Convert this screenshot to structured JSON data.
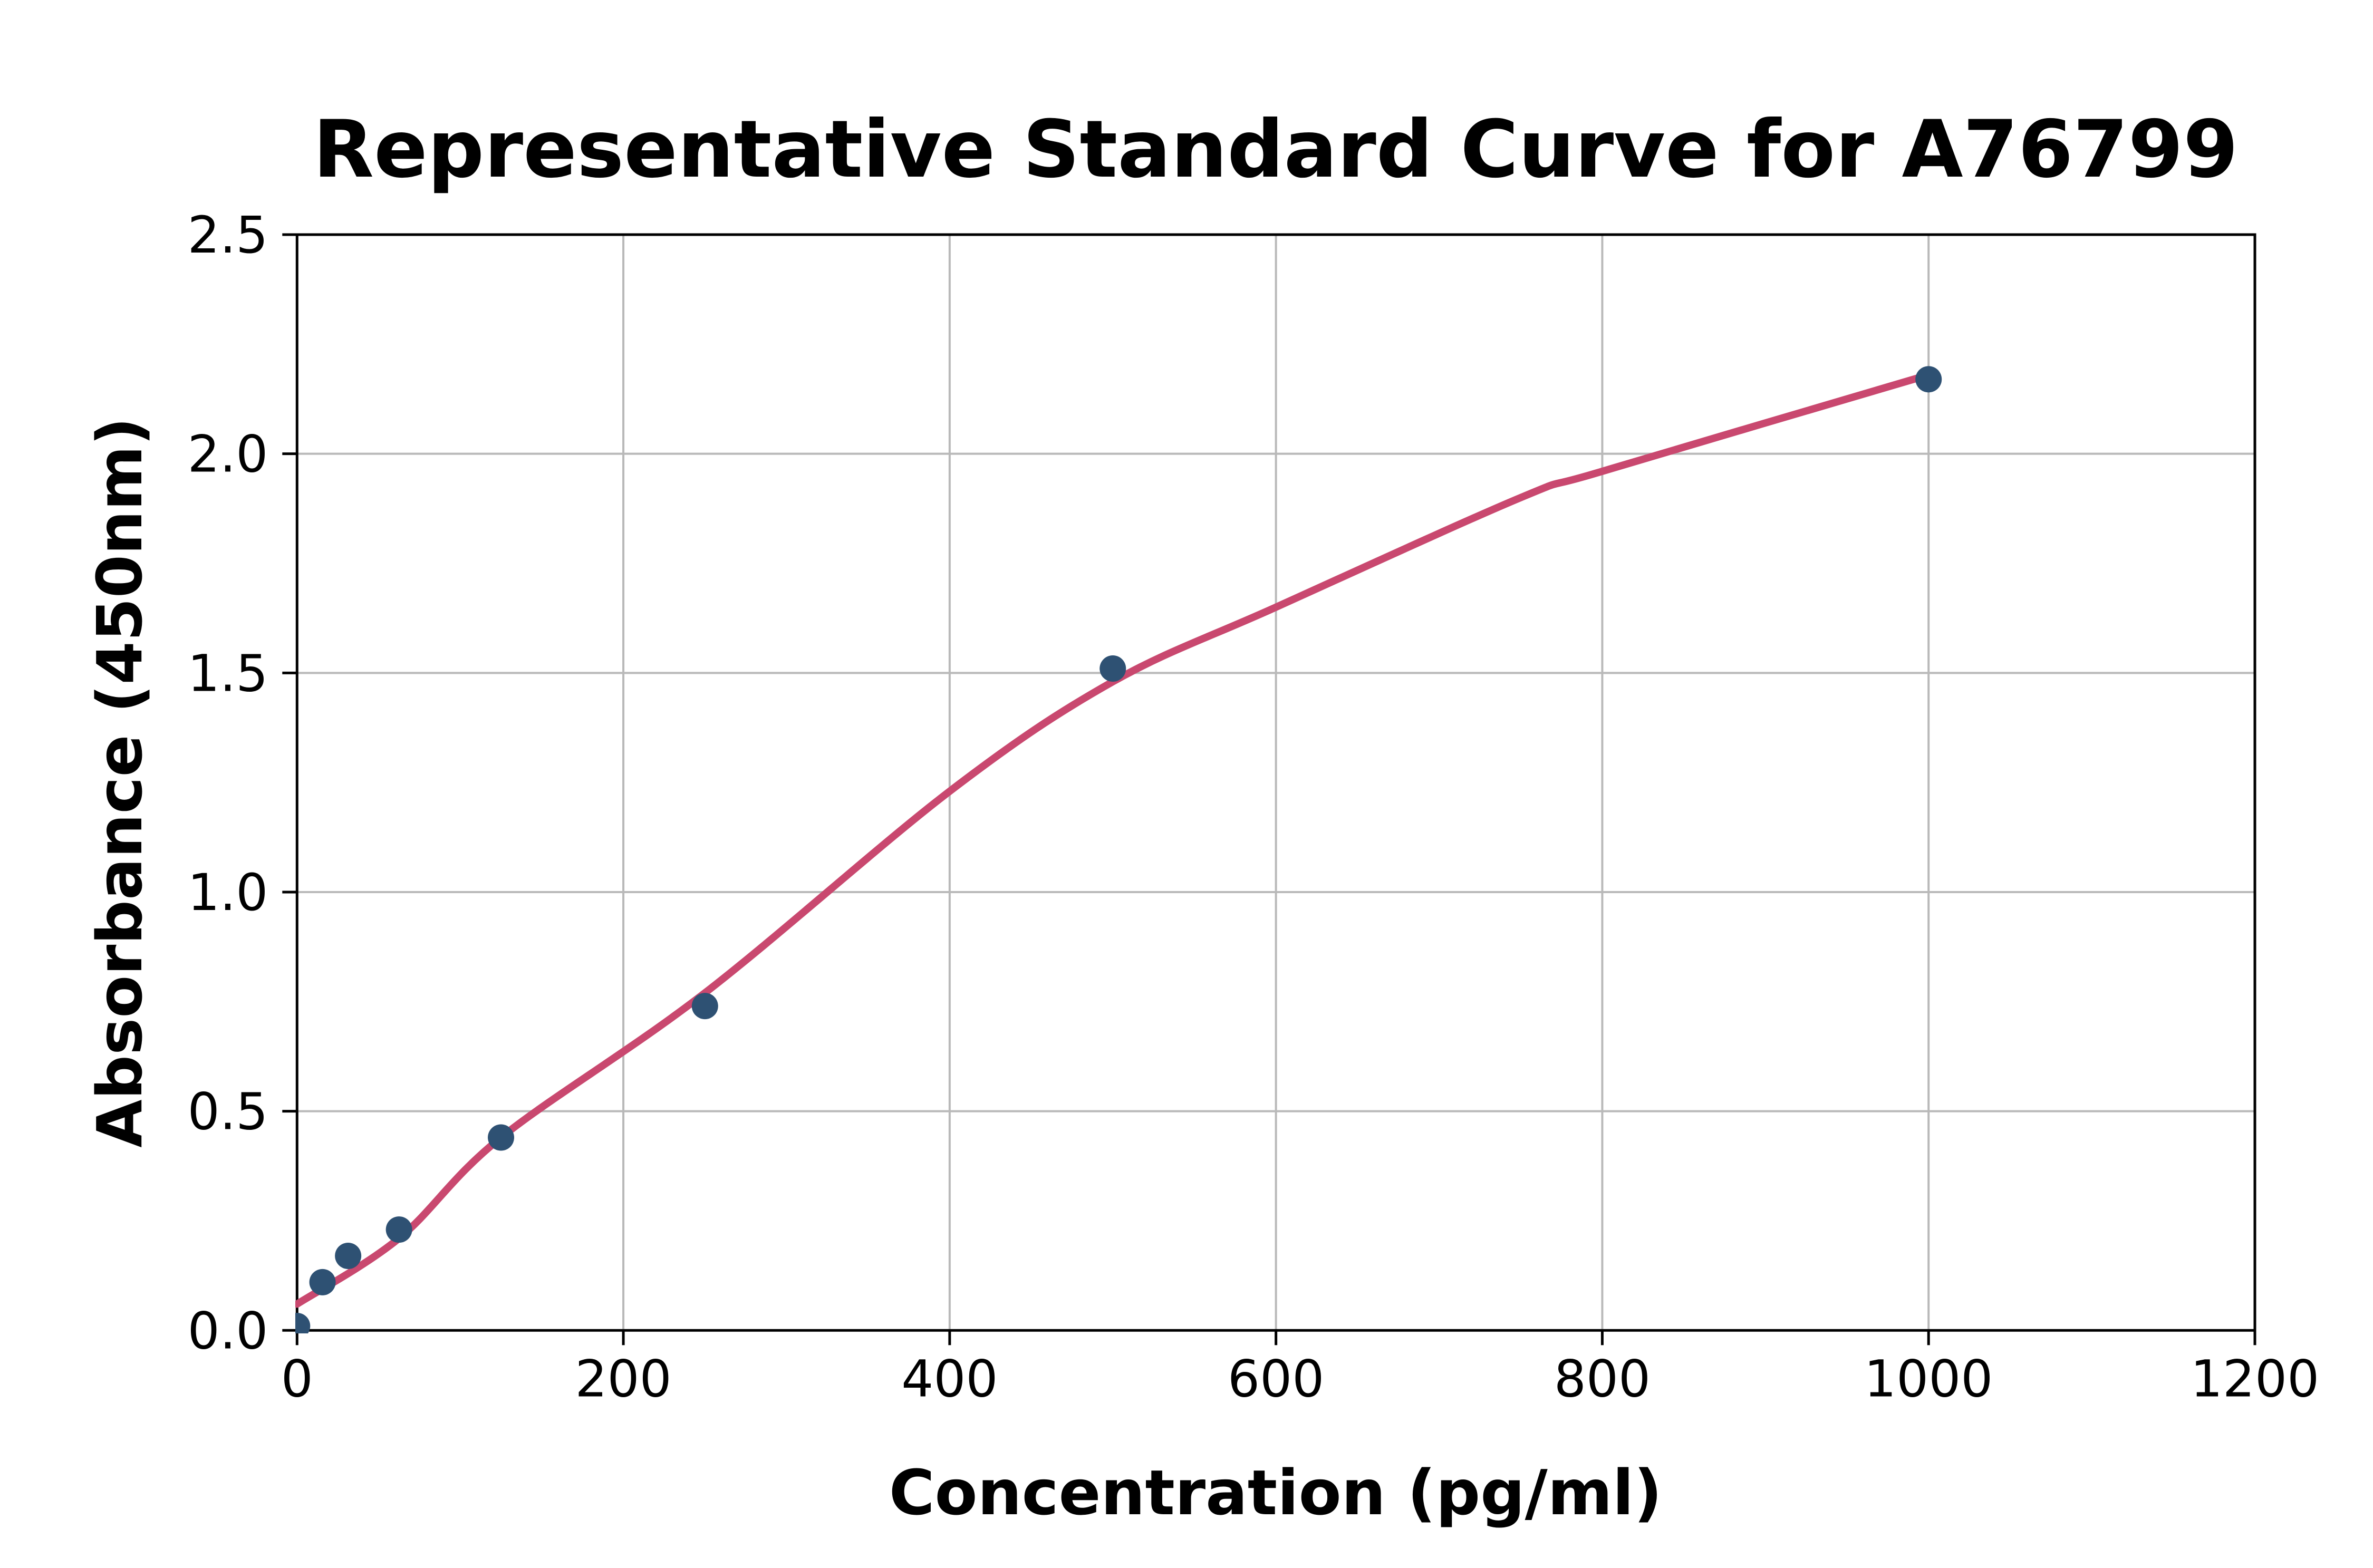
{
  "chart_data": {
    "type": "scatter",
    "title": "Representative Standard Curve for A76799",
    "xlabel": "Concentration (pg/ml)",
    "ylabel": "Absorbance (450nm)",
    "xlim": [
      0,
      1200
    ],
    "ylim": [
      0,
      2.5
    ],
    "xticks": [
      0,
      200,
      400,
      600,
      800,
      1000,
      1200
    ],
    "yticks": [
      0.0,
      0.5,
      1.0,
      1.5,
      2.0,
      2.5
    ],
    "grid": true,
    "legend": "none",
    "points": [
      {
        "x": 0,
        "y": 0.01
      },
      {
        "x": 15.6,
        "y": 0.11
      },
      {
        "x": 31.3,
        "y": 0.17
      },
      {
        "x": 62.5,
        "y": 0.23
      },
      {
        "x": 125,
        "y": 0.44
      },
      {
        "x": 250,
        "y": 0.74
      },
      {
        "x": 500,
        "y": 1.51
      },
      {
        "x": 1000,
        "y": 2.17
      }
    ],
    "fit_curve": [
      [
        0,
        0.06
      ],
      [
        62.5,
        0.21
      ],
      [
        125,
        0.44
      ],
      [
        250,
        0.77
      ],
      [
        400,
        1.23
      ],
      [
        500,
        1.48
      ],
      [
        600,
        1.65
      ],
      [
        750,
        1.9
      ],
      [
        800,
        1.96
      ],
      [
        1000,
        2.18
      ]
    ],
    "colors": {
      "marker": "#2e5173",
      "curve": "#c9486f",
      "grid": "#b9b9b9",
      "frame": "#000000",
      "background": "#ffffff"
    }
  }
}
